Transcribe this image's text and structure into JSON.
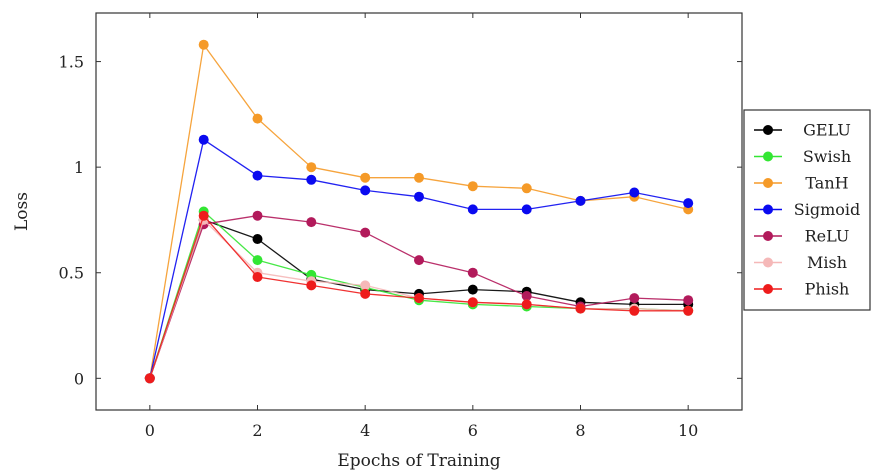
{
  "chart_data": {
    "type": "line",
    "title": "",
    "xlabel": "Epochs of Training",
    "ylabel": "Loss",
    "xlim": [
      -1,
      11
    ],
    "ylim": [
      -0.15,
      1.73
    ],
    "x_ticks": [
      0,
      2,
      4,
      6,
      8,
      10
    ],
    "y_ticks": [
      0,
      0.5,
      1,
      1.5
    ],
    "x_tick_labels": [
      "0",
      "2",
      "4",
      "6",
      "8",
      "10"
    ],
    "y_tick_labels": [
      "0",
      "0.5",
      "1",
      "1.5"
    ],
    "grid": false,
    "legend_position": "outside-right",
    "x": [
      0,
      1,
      2,
      3,
      4,
      5,
      6,
      7,
      8,
      9,
      10
    ],
    "series": [
      {
        "name": "GELU",
        "color": "#000000",
        "values": [
          0,
          0.75,
          0.66,
          0.47,
          0.42,
          0.4,
          0.42,
          0.41,
          0.36,
          0.35,
          0.35
        ]
      },
      {
        "name": "Swish",
        "color": "#33e633",
        "values": [
          0,
          0.79,
          0.56,
          0.49,
          0.43,
          0.37,
          0.35,
          0.34,
          0.33,
          0.33,
          0.32
        ]
      },
      {
        "name": "TanH",
        "color": "#f59a28",
        "values": [
          0,
          1.58,
          1.23,
          1.0,
          0.95,
          0.95,
          0.91,
          0.9,
          0.84,
          0.86,
          0.8
        ]
      },
      {
        "name": "Sigmoid",
        "color": "#0a0af0",
        "values": [
          0,
          1.13,
          0.96,
          0.94,
          0.89,
          0.86,
          0.8,
          0.8,
          0.84,
          0.88,
          0.83
        ]
      },
      {
        "name": "ReLU",
        "color": "#b21a5b",
        "values": [
          0,
          0.73,
          0.77,
          0.74,
          0.69,
          0.56,
          0.5,
          0.39,
          0.34,
          0.38,
          0.37
        ]
      },
      {
        "name": "Mish",
        "color": "#f5b8b8",
        "values": [
          0,
          0.75,
          0.5,
          0.46,
          0.44,
          0.38,
          0.36,
          0.35,
          0.33,
          0.33,
          0.32
        ]
      },
      {
        "name": "Phish",
        "color": "#ee1c1c",
        "values": [
          0,
          0.77,
          0.48,
          0.44,
          0.4,
          0.38,
          0.36,
          0.35,
          0.33,
          0.32,
          0.32
        ]
      }
    ]
  }
}
